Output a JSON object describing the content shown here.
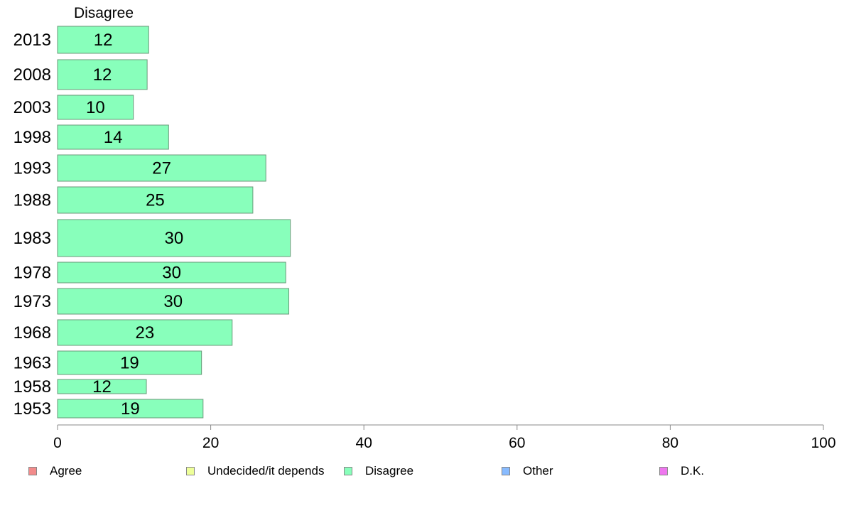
{
  "chart_data": {
    "type": "bar",
    "orientation": "horizontal",
    "panel_label": "Disagree",
    "categories": [
      "2013",
      "2008",
      "2003",
      "1998",
      "1993",
      "1988",
      "1983",
      "1978",
      "1973",
      "1968",
      "1963",
      "1958",
      "1953"
    ],
    "series": [
      {
        "name": "Disagree",
        "values": [
          12,
          12,
          10,
          14,
          27,
          25,
          30,
          30,
          30,
          23,
          19,
          12,
          19
        ],
        "plot_values": [
          11.9,
          11.7,
          9.9,
          14.5,
          27.2,
          25.5,
          30.4,
          29.8,
          30.2,
          22.8,
          18.8,
          11.6,
          19.0
        ]
      }
    ],
    "x_ticks": [
      "0",
      "20",
      "40",
      "60",
      "80",
      "100"
    ],
    "xlim": [
      0,
      100
    ],
    "grid": false,
    "legend_position": "bottom",
    "legend": [
      {
        "label": "Agree",
        "color": "#f28b8b"
      },
      {
        "label": "Undecided/it depends",
        "color": "#eeff99"
      },
      {
        "label": "Disagree",
        "color": "#88ffbb"
      },
      {
        "label": "Other",
        "color": "#88bbff"
      },
      {
        "label": "D.K.",
        "color": "#ee77ee"
      }
    ],
    "bar_color": "#88ffbb",
    "bar_stroke": "#6a9a7a"
  }
}
